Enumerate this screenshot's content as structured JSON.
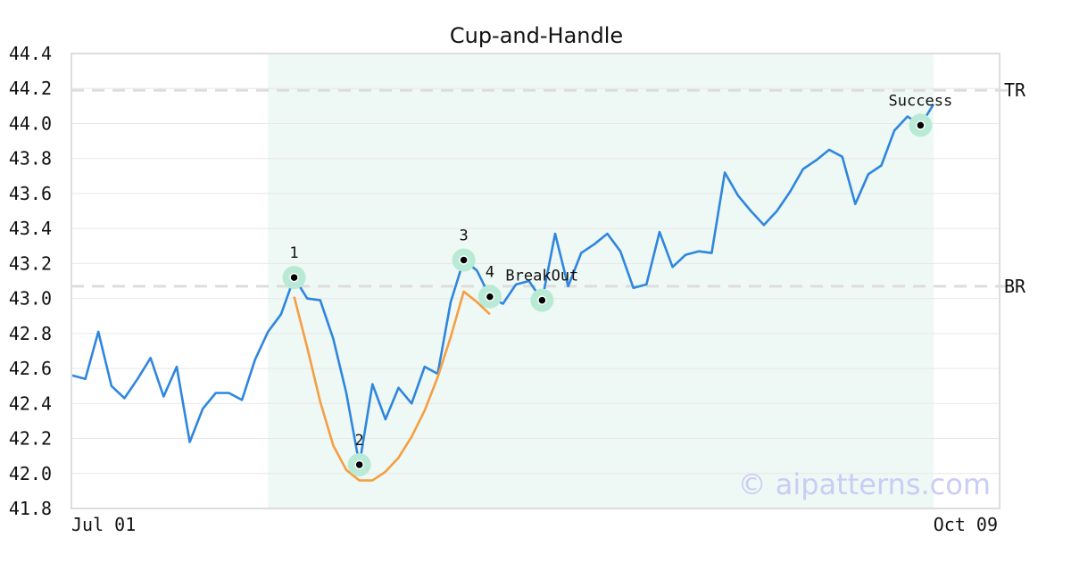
{
  "chart_data": {
    "type": "line",
    "title": "Cup-and-Handle",
    "x_tick_labels": [
      "Jul 01",
      "Oct 09"
    ],
    "ylim": [
      41.8,
      44.4
    ],
    "y_ticks": [
      41.8,
      42.0,
      42.2,
      42.4,
      42.6,
      42.8,
      43.0,
      43.2,
      43.4,
      43.6,
      43.8,
      44.0,
      44.2,
      44.4
    ],
    "grid": true,
    "shaded_range": [
      15,
      66
    ],
    "series": [
      {
        "color": "#2e86de",
        "values": [
          42.56,
          42.54,
          42.81,
          42.5,
          42.43,
          42.54,
          42.66,
          42.44,
          42.61,
          42.18,
          42.37,
          42.46,
          42.46,
          42.42,
          42.65,
          42.81,
          42.91,
          43.12,
          43.0,
          42.99,
          42.77,
          42.46,
          42.05,
          42.51,
          42.31,
          42.49,
          42.4,
          42.61,
          42.57,
          42.98,
          43.22,
          43.16,
          43.01,
          42.97,
          43.08,
          43.1,
          42.99,
          43.37,
          43.07,
          43.26,
          43.31,
          43.37,
          43.27,
          43.06,
          43.08,
          43.38,
          43.18,
          43.25,
          43.27,
          43.26,
          43.72,
          43.59,
          43.5,
          43.42,
          43.5,
          43.61,
          43.74,
          43.79,
          43.85,
          43.81,
          43.54,
          43.71,
          43.76,
          43.96,
          44.04,
          43.99,
          44.11
        ]
      },
      {
        "color": "#f59e42",
        "x_start": 17,
        "values": [
          43.01,
          42.72,
          42.41,
          42.16,
          42.02,
          41.96,
          41.96,
          42.01,
          42.09,
          42.21,
          42.36,
          42.55,
          42.78,
          43.04,
          42.98,
          42.91
        ]
      }
    ],
    "reference_lines": [
      {
        "label": "TR",
        "value": 44.19,
        "color": "#dddddd"
      },
      {
        "label": "BR",
        "value": 43.07,
        "color": "#dddddd"
      }
    ],
    "points": [
      {
        "label": "1",
        "x": 17,
        "y": 43.12,
        "label_pos": "above"
      },
      {
        "label": "2",
        "x": 22,
        "y": 42.05,
        "label_pos": "above"
      },
      {
        "label": "3",
        "x": 30,
        "y": 43.22,
        "label_pos": "above"
      },
      {
        "label": "4",
        "x": 32,
        "y": 43.01,
        "label_pos": "above"
      },
      {
        "label": "BreakOut",
        "x": 36,
        "y": 42.99,
        "label_pos": "above"
      },
      {
        "label": "Success",
        "x": 65,
        "y": 43.99,
        "label_pos": "above"
      }
    ],
    "marker_color": "#b8ead6",
    "shade_color": "#eef8f4",
    "watermark": "© aipatterns.com"
  }
}
